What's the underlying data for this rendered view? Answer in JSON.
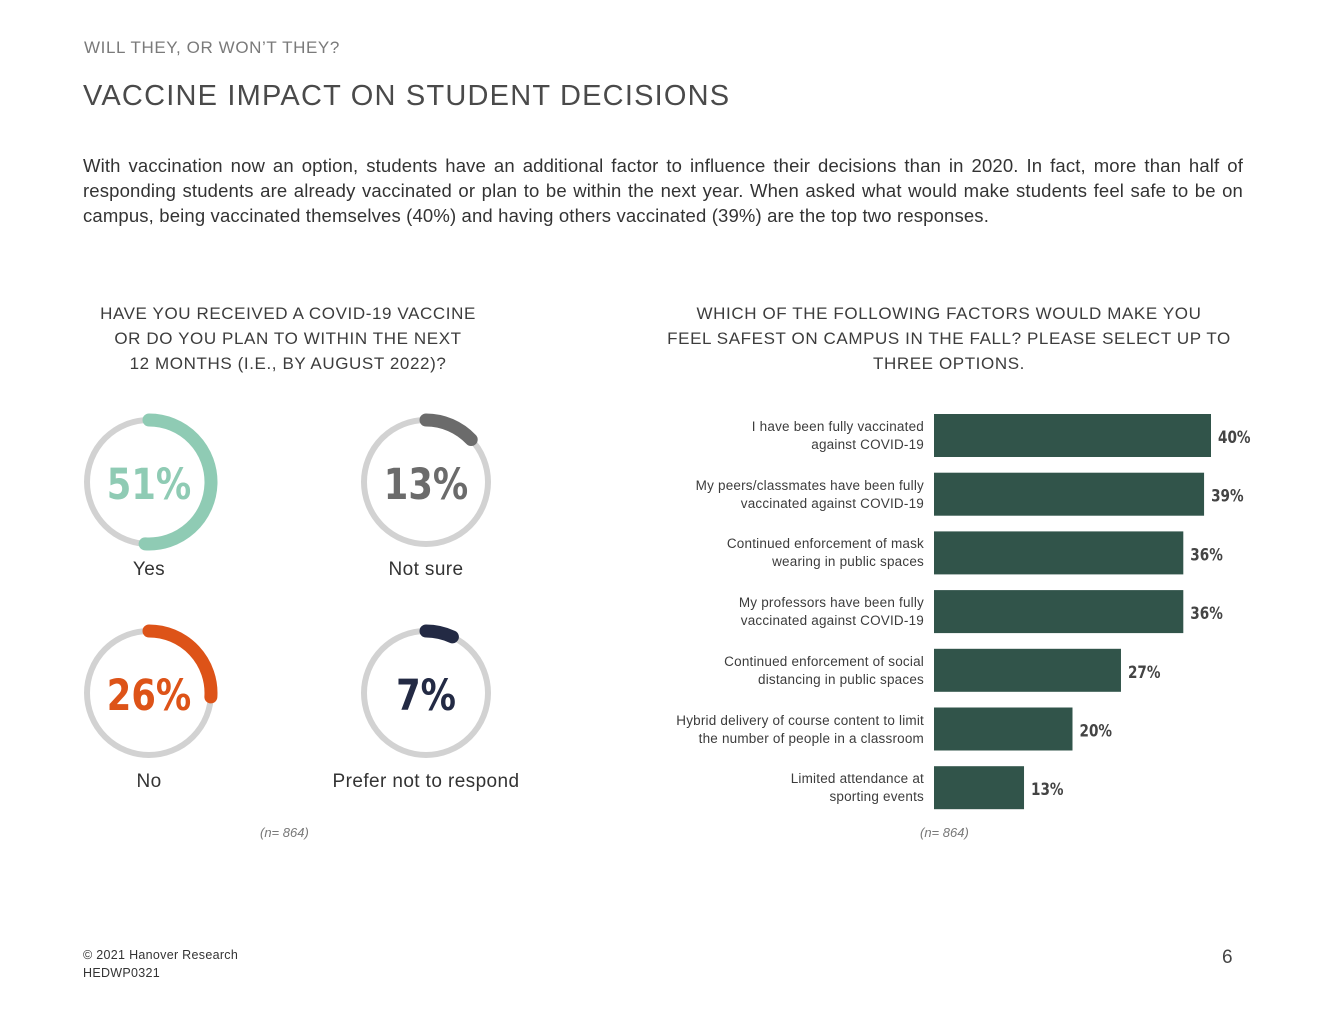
{
  "header": {
    "kicker": "WILL THEY, OR WON’T THEY?",
    "title": "VACCINE IMPACT ON STUDENT DECISIONS",
    "intro": "With vaccination now an option, students have an additional factor to influence their decisions than in 2020. In fact, more than half of responding students are already vaccinated or plan to be within the next year. When asked what would make students feel safe to be on campus, being vaccinated themselves (40%) and having others vaccinated (39%) are the top two responses."
  },
  "left_panel": {
    "question": [
      "HAVE YOU RECEIVED A COVID-19 VACCINE",
      "OR DO YOU PLAN TO WITHIN THE NEXT",
      "12 MONTHS (I.E., BY AUGUST 2022)?"
    ],
    "note": "(n= 864)"
  },
  "right_panel": {
    "question": [
      "WHICH OF THE FOLLOWING FACTORS WOULD MAKE YOU",
      "FEEL SAFEST ON CAMPUS IN THE FALL? PLEASE SELECT UP TO",
      "THREE OPTIONS."
    ],
    "note": "(n= 864)"
  },
  "chart_data": [
    {
      "type": "pie",
      "style": "donut-ring",
      "title": "HAVE YOU RECEIVED A COVID-19 VACCINE OR DO YOU PLAN TO WITHIN THE NEXT 12 MONTHS (I.E., BY AUGUST 2022)?",
      "categories": [
        "Yes",
        "Not sure",
        "No",
        "Prefer not to respond"
      ],
      "values": [
        51,
        13,
        26,
        7
      ],
      "labels": [
        "51%",
        "13%",
        "26%",
        "7%"
      ],
      "colors": [
        "#8fcbb4",
        "#6b6b6b",
        "#dd5318",
        "#232a44"
      ],
      "track_color": "#d2d2d2"
    },
    {
      "type": "bar",
      "orientation": "horizontal",
      "title": "WHICH OF THE FOLLOWING FACTORS WOULD MAKE YOU FEEL SAFEST ON CAMPUS IN THE FALL? PLEASE SELECT UP TO THREE OPTIONS.",
      "categories": [
        [
          "I have been fully vaccinated",
          "against COVID-19"
        ],
        [
          "My peers/classmates have been fully",
          "vaccinated against COVID-19"
        ],
        [
          "Continued enforcement of mask",
          "wearing in public spaces"
        ],
        [
          "My professors have been fully",
          "vaccinated against COVID-19"
        ],
        [
          "Continued enforcement of social",
          "distancing in public spaces"
        ],
        [
          "Hybrid delivery of course content to limit",
          "the number of people in a classroom"
        ],
        [
          "Limited attendance at",
          "sporting events"
        ]
      ],
      "values": [
        40,
        39,
        36,
        36,
        27,
        20,
        13
      ],
      "labels": [
        "40%",
        "39%",
        "36%",
        "36%",
        "27%",
        "20%",
        "13%"
      ],
      "bar_color": "#31544a",
      "xlim": [
        0,
        40
      ]
    }
  ],
  "footer": {
    "copyright": "© 2021 Hanover Research",
    "code": "HEDWP0321",
    "page": "6"
  }
}
